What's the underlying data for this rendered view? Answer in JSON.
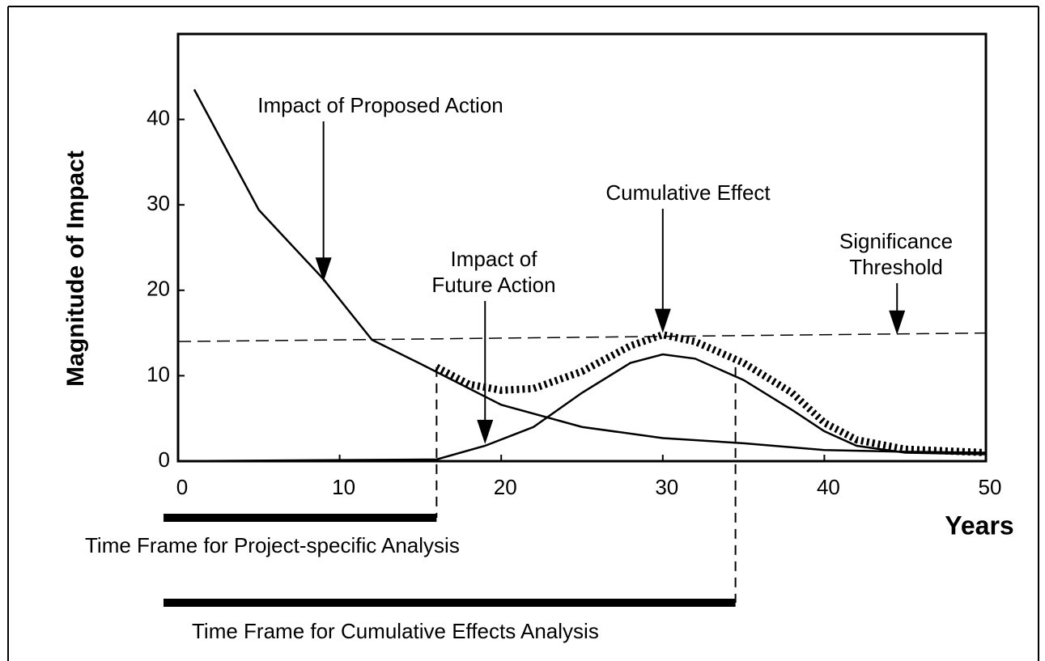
{
  "chart_data": {
    "type": "line",
    "y_label": "Magnitude of Impact",
    "x_label": "Years",
    "xlim": [
      0,
      50
    ],
    "ylim": [
      0,
      50
    ],
    "xticks": [
      0,
      10,
      20,
      30,
      40,
      50
    ],
    "yticks": [
      0,
      10,
      20,
      30,
      40
    ],
    "series": [
      {
        "name": "Impact of Proposed Action",
        "color": "#000000",
        "style": "solid",
        "x": [
          1,
          5,
          9,
          12,
          15,
          20,
          25,
          30,
          35,
          40,
          45,
          50
        ],
        "values": [
          43.5,
          29.4,
          21.3,
          14.2,
          11.4,
          6.6,
          4,
          2.7,
          2.1,
          1.3,
          1.1,
          1.0
        ]
      },
      {
        "name": "Impact of Future Action",
        "color": "#000000",
        "style": "solid",
        "x": [
          0,
          16,
          19,
          22,
          25,
          28,
          30,
          32,
          35,
          38,
          40,
          42,
          45,
          50
        ],
        "values": [
          0,
          0.2,
          1.8,
          4,
          8,
          11.5,
          12.5,
          12,
          9.5,
          6,
          3.5,
          1.8,
          1,
          0.8
        ]
      },
      {
        "name": "Cumulative Effect",
        "color": "#000000",
        "style": "hatched",
        "x": [
          16,
          18,
          20,
          22,
          25,
          28,
          30,
          32,
          35,
          38,
          40,
          42,
          45,
          50
        ],
        "values": [
          11,
          9,
          8.3,
          8.5,
          10.5,
          13.5,
          14.8,
          14,
          11.5,
          8,
          4.5,
          2.5,
          1.4,
          1.0
        ]
      },
      {
        "name": "Significance Threshold",
        "color": "#000000",
        "style": "dashed",
        "x": [
          0,
          50
        ],
        "values": [
          14,
          15
        ]
      }
    ],
    "annotations": [
      {
        "lines": [
          "Impact of Proposed Action"
        ],
        "x": 9,
        "y": 21
      },
      {
        "lines": [
          "Impact of",
          "Future Action"
        ],
        "x": 19,
        "y": 2
      },
      {
        "lines": [
          "Cumulative Effect"
        ],
        "x": 30,
        "y": 15
      },
      {
        "lines": [
          "Significance",
          "Threshold"
        ],
        "x": 44.5,
        "y": 14.8
      }
    ],
    "time_frames": [
      {
        "label": "Time Frame for Project-specific Analysis",
        "start": -0.5,
        "end": 16
      },
      {
        "label": "Time Frame for Cumulative Effects Analysis",
        "start": -0.5,
        "end": 34.5
      }
    ]
  }
}
